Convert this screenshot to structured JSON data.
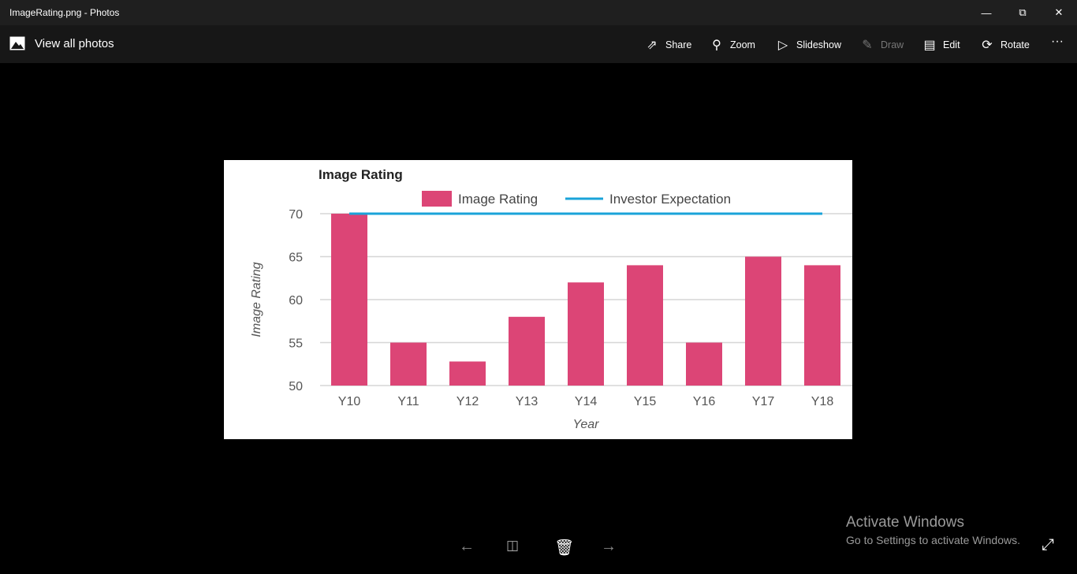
{
  "window": {
    "title": "ImageRating.png - Photos",
    "minimize_icon": "minimize-icon",
    "maximize_icon": "restore-icon",
    "close_icon": "close-icon"
  },
  "toolbar": {
    "view_all": "View all photos",
    "share": "Share",
    "zoom": "Zoom",
    "slideshow": "Slideshow",
    "draw": "Draw",
    "edit": "Edit",
    "rotate": "Rotate",
    "more": "···"
  },
  "activation": {
    "title": "Activate Windows",
    "subtitle": "Go to Settings to activate Windows."
  },
  "chart_data": {
    "type": "bar",
    "title": "Image Rating",
    "xlabel": "Year",
    "ylabel": "Image Rating",
    "categories": [
      "Y10",
      "Y11",
      "Y12",
      "Y13",
      "Y14",
      "Y15",
      "Y16",
      "Y17",
      "Y18"
    ],
    "series": [
      {
        "name": "Image Rating",
        "type": "bar",
        "color": "#dc4576",
        "values": [
          70,
          55,
          52.8,
          58,
          62,
          64,
          55,
          65,
          64
        ]
      },
      {
        "name": "Investor Expectation",
        "type": "line",
        "color": "#1aa3d9",
        "values": [
          70,
          70,
          70,
          70,
          70,
          70,
          70,
          70,
          70
        ]
      }
    ],
    "ylim": [
      50,
      70
    ],
    "yticks": [
      "50",
      "55",
      "60",
      "65",
      "70"
    ],
    "grid": true,
    "legend": "top"
  }
}
